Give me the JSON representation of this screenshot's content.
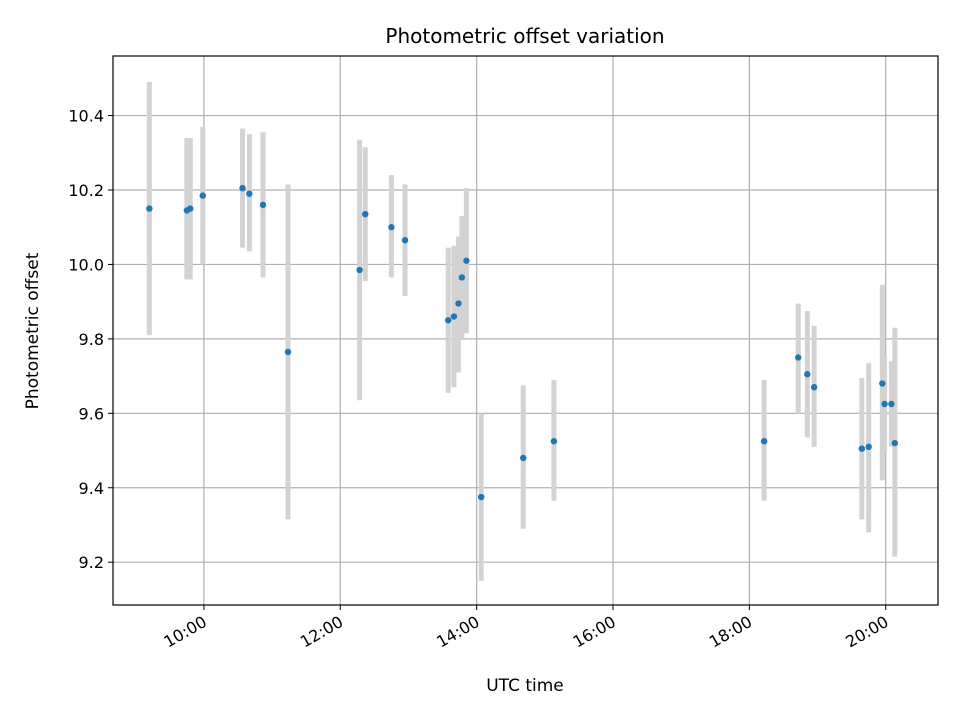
{
  "chart_data": {
    "type": "scatter",
    "title": "Photometric offset variation",
    "xlabel": "UTC time",
    "ylabel": "Photometric offset",
    "x_format": "HH:MM",
    "xlim": [
      "08:40",
      "20:46"
    ],
    "ylim": [
      9.085,
      10.56
    ],
    "xticks": [
      "10:00",
      "12:00",
      "14:00",
      "16:00",
      "18:00",
      "20:00"
    ],
    "yticks": [
      9.2,
      9.4,
      9.6,
      9.8,
      10.0,
      10.2,
      10.4
    ],
    "grid": true,
    "point_color": "#1f77b4",
    "errorbar_color": "#d3d3d3",
    "points": [
      {
        "x": "09:12",
        "y": 10.15,
        "yerr_low": 9.81,
        "yerr_high": 10.49
      },
      {
        "x": "09:45",
        "y": 10.145,
        "yerr_low": 9.96,
        "yerr_high": 10.34
      },
      {
        "x": "09:48",
        "y": 10.15,
        "yerr_low": 9.96,
        "yerr_high": 10.34
      },
      {
        "x": "09:59",
        "y": 10.185,
        "yerr_low": 10.0,
        "yerr_high": 10.37
      },
      {
        "x": "10:34",
        "y": 10.205,
        "yerr_low": 10.045,
        "yerr_high": 10.365
      },
      {
        "x": "10:40",
        "y": 10.19,
        "yerr_low": 10.035,
        "yerr_high": 10.35
      },
      {
        "x": "10:52",
        "y": 10.16,
        "yerr_low": 9.965,
        "yerr_high": 10.355
      },
      {
        "x": "11:14",
        "y": 9.765,
        "yerr_low": 9.315,
        "yerr_high": 10.215
      },
      {
        "x": "12:17",
        "y": 9.985,
        "yerr_low": 9.635,
        "yerr_high": 10.335
      },
      {
        "x": "12:22",
        "y": 10.135,
        "yerr_low": 9.955,
        "yerr_high": 10.315
      },
      {
        "x": "12:45",
        "y": 10.1,
        "yerr_low": 9.965,
        "yerr_high": 10.24
      },
      {
        "x": "12:57",
        "y": 10.065,
        "yerr_low": 9.915,
        "yerr_high": 10.215
      },
      {
        "x": "13:35",
        "y": 9.85,
        "yerr_low": 9.655,
        "yerr_high": 10.045
      },
      {
        "x": "13:40",
        "y": 9.86,
        "yerr_low": 9.67,
        "yerr_high": 10.05
      },
      {
        "x": "13:44",
        "y": 9.895,
        "yerr_low": 9.71,
        "yerr_high": 10.075
      },
      {
        "x": "13:47",
        "y": 9.965,
        "yerr_low": 9.8,
        "yerr_high": 10.13
      },
      {
        "x": "13:51",
        "y": 10.01,
        "yerr_low": 9.815,
        "yerr_high": 10.205
      },
      {
        "x": "14:04",
        "y": 9.375,
        "yerr_low": 9.15,
        "yerr_high": 9.6
      },
      {
        "x": "14:41",
        "y": 9.48,
        "yerr_low": 9.29,
        "yerr_high": 9.675
      },
      {
        "x": "15:08",
        "y": 9.525,
        "yerr_low": 9.365,
        "yerr_high": 9.69
      },
      {
        "x": "18:13",
        "y": 9.525,
        "yerr_low": 9.365,
        "yerr_high": 9.69
      },
      {
        "x": "18:43",
        "y": 9.75,
        "yerr_low": 9.6,
        "yerr_high": 9.895
      },
      {
        "x": "18:51",
        "y": 9.705,
        "yerr_low": 9.535,
        "yerr_high": 9.875
      },
      {
        "x": "18:57",
        "y": 9.67,
        "yerr_low": 9.51,
        "yerr_high": 9.835
      },
      {
        "x": "19:39",
        "y": 9.505,
        "yerr_low": 9.315,
        "yerr_high": 9.695
      },
      {
        "x": "19:45",
        "y": 9.51,
        "yerr_low": 9.28,
        "yerr_high": 9.735
      },
      {
        "x": "19:57",
        "y": 9.68,
        "yerr_low": 9.42,
        "yerr_high": 9.945
      },
      {
        "x": "19:59",
        "y": 9.625,
        "yerr_low": 9.5,
        "yerr_high": 9.75
      },
      {
        "x": "20:05",
        "y": 9.625,
        "yerr_low": 9.51,
        "yerr_high": 9.74
      },
      {
        "x": "20:08",
        "y": 9.52,
        "yerr_low": 9.215,
        "yerr_high": 9.83
      }
    ]
  }
}
